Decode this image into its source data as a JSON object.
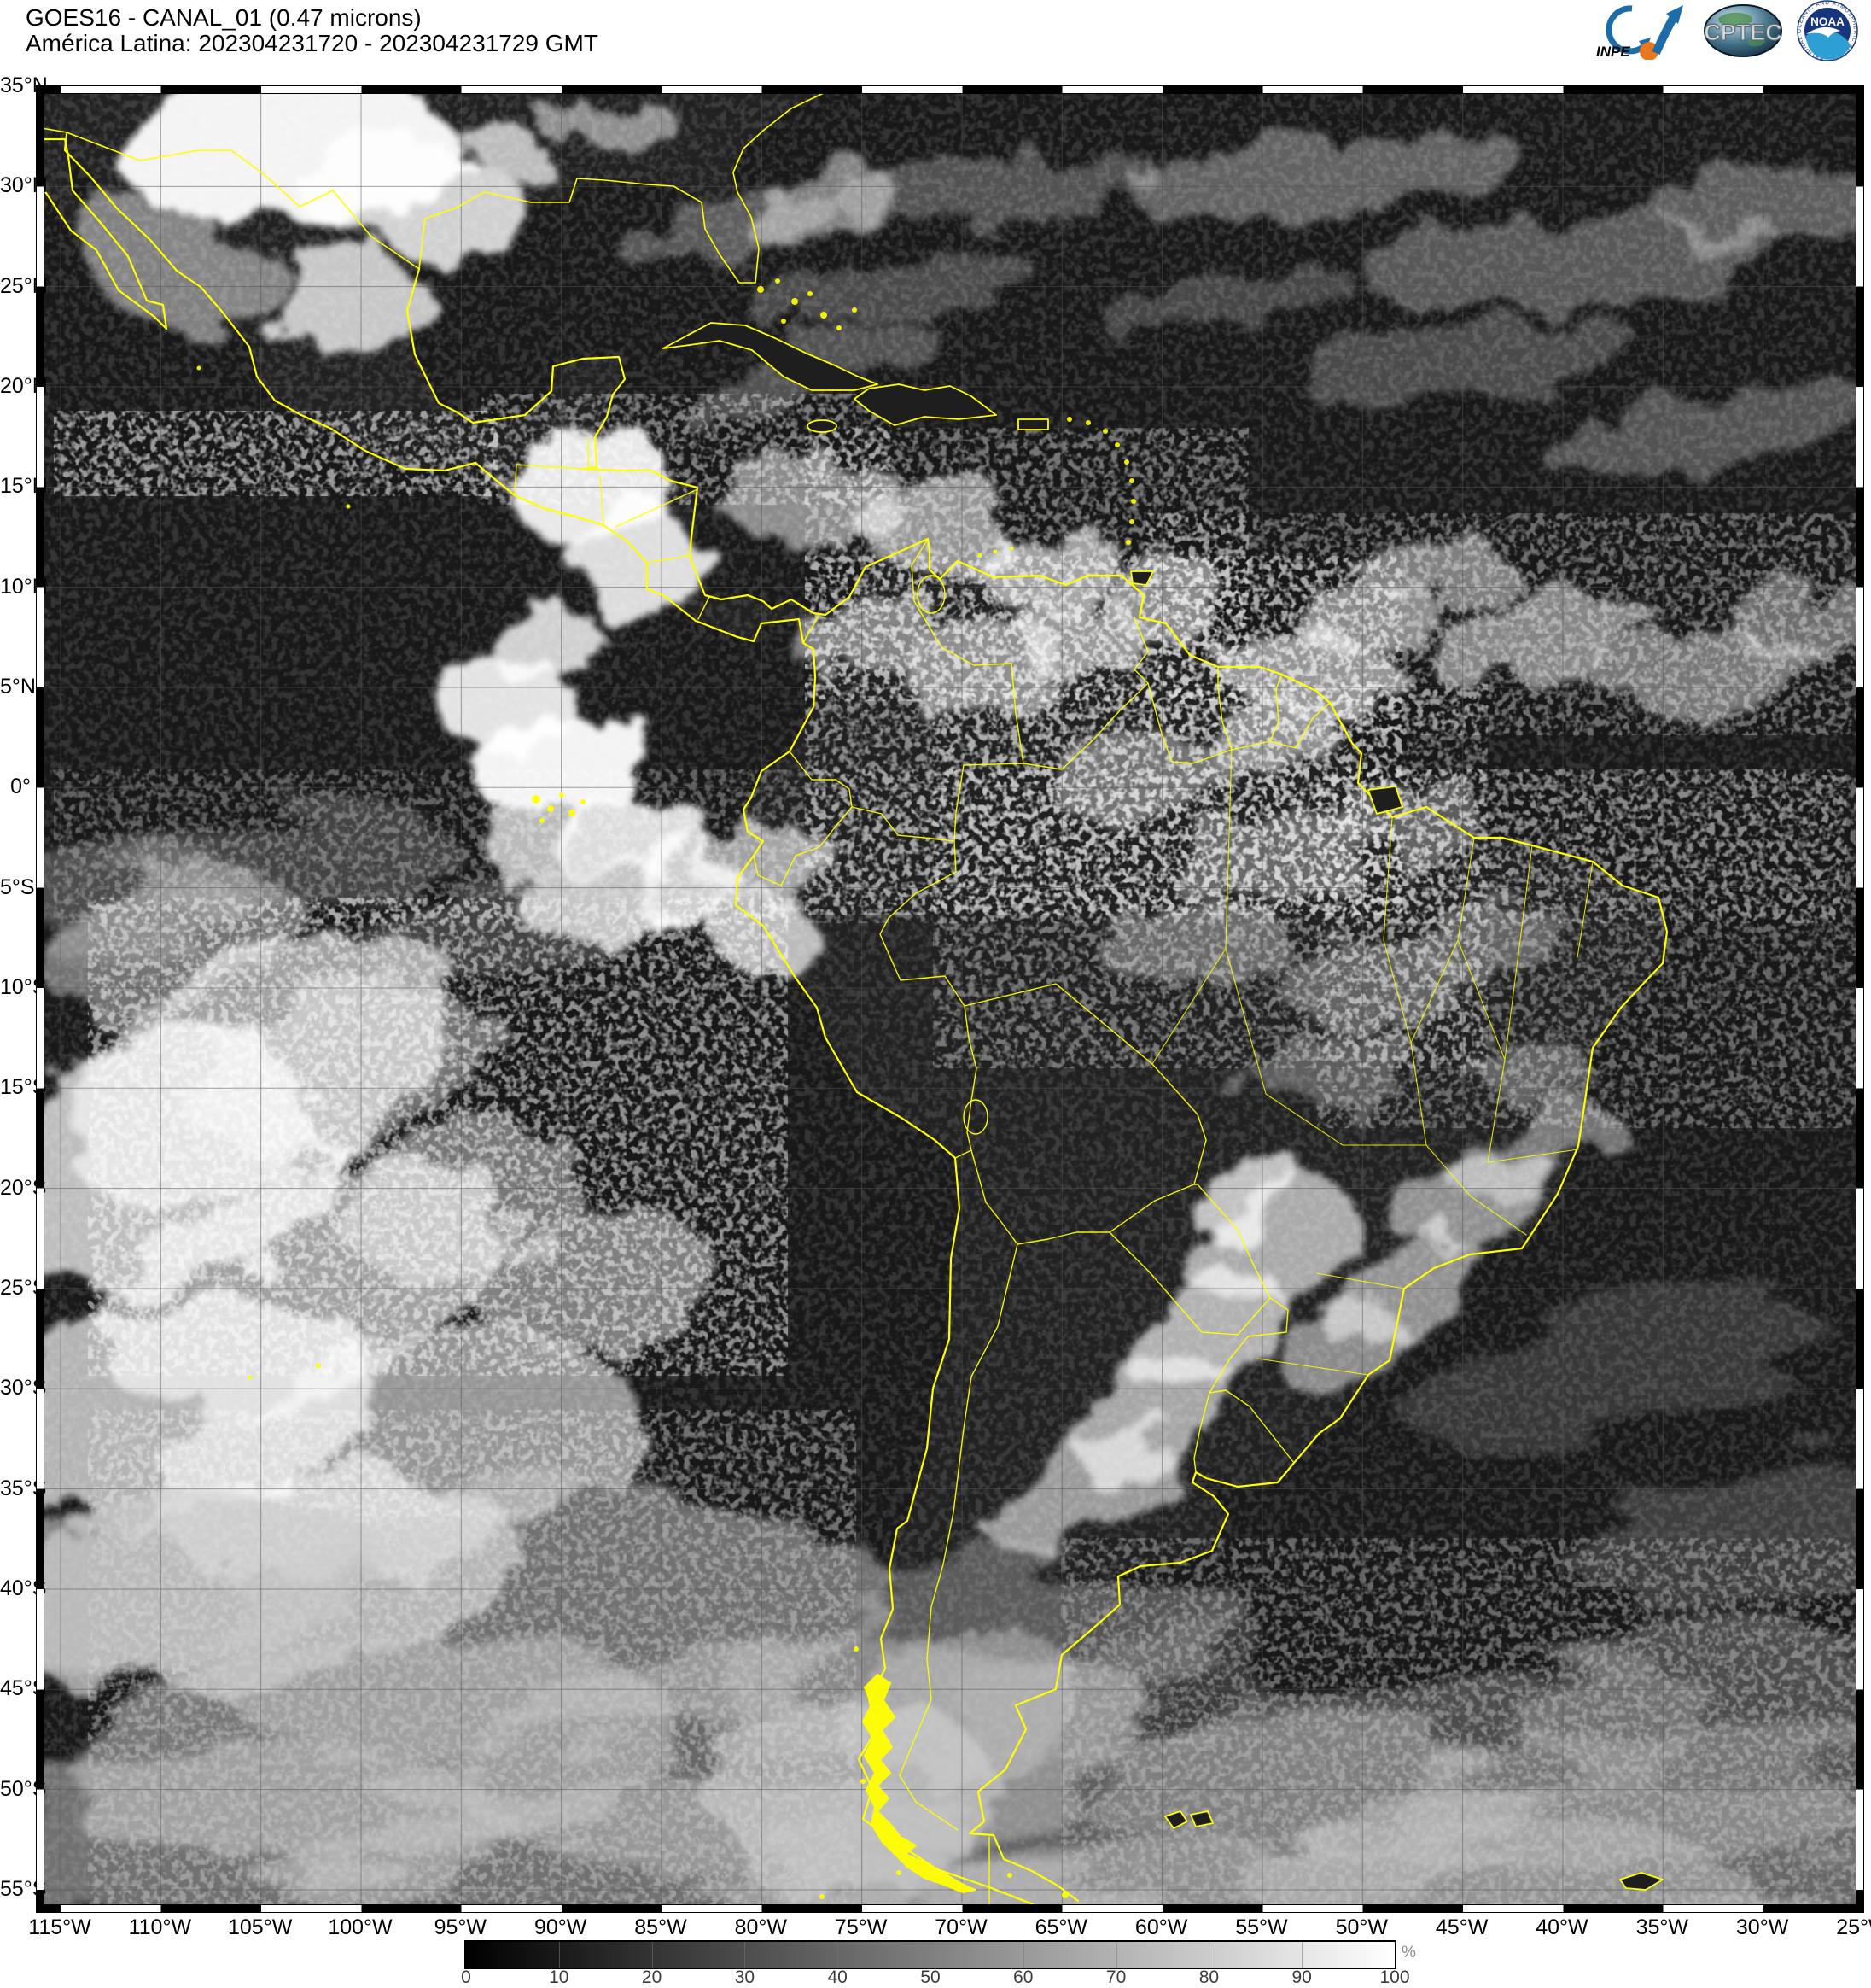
{
  "header": {
    "title_line1": "GOES16 - CANAL_01 (0.47 microns)",
    "title_line2": "América Latina: 202304231720 - 202304231729 GMT"
  },
  "logos": {
    "inpe_label": "INPE",
    "cptec_label": "CPTEC",
    "noaa_label": "NOAA",
    "noaa_ring_text": "NATIONAL OCEANIC AND ATMOSPHERIC ADMINISTRATION"
  },
  "map": {
    "lat_labels": [
      "35°N",
      "30°N",
      "25°N",
      "20°N",
      "15°N",
      "10°N",
      "5°N",
      "0°",
      "5°S",
      "10°S",
      "15°S",
      "20°S",
      "25°S",
      "30°S",
      "35°S",
      "40°S",
      "45°S",
      "50°S",
      "55°S"
    ],
    "lon_labels": [
      "115°W",
      "110°W",
      "105°W",
      "100°W",
      "95°W",
      "90°W",
      "85°W",
      "80°W",
      "75°W",
      "70°W",
      "65°W",
      "60°W",
      "55°W",
      "50°W",
      "45°W",
      "40°W",
      "35°W",
      "30°W",
      "25°W"
    ],
    "border_color": "#ffff00",
    "grid_color": "#555555",
    "ocean_color": "#181818",
    "land_color": "#212121"
  },
  "colorbar": {
    "tick_labels": [
      "0",
      "10",
      "20",
      "30",
      "40",
      "50",
      "60",
      "70",
      "80",
      "90",
      "100"
    ],
    "unit": "%",
    "gradient_from": "#000000",
    "gradient_to": "#ffffff"
  }
}
